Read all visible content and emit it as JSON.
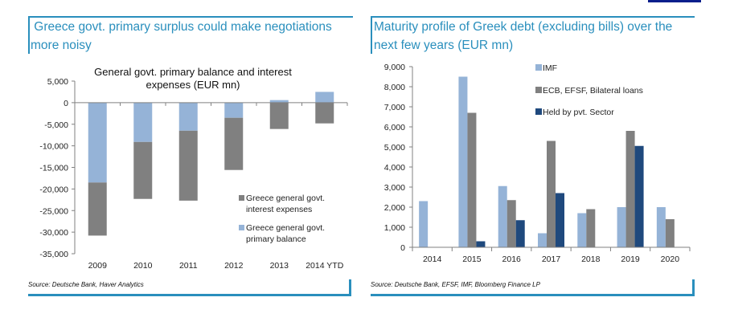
{
  "colors": {
    "frame": "#2a8fbd",
    "topbar": "#0a1e8c",
    "light_blue": "#95b3d7",
    "gray": "#808080",
    "navy": "#1f497d",
    "axis": "#808080"
  },
  "left_panel": {
    "title": " Greece govt. primary surplus could make negotiations more noisy",
    "title_line1": " Greece govt. primary surplus could make negotiations",
    "title_line2": "more noisy",
    "source": "Source: Deutsche Bank, Haver Analytics"
  },
  "right_panel": {
    "title_line1": "Maturity profile of Greek debt (excluding bills) over the",
    "title_line2": "next few years (EUR mn)",
    "source": "Source: Deutsche Bank, EFSF, IMF, Bloomberg Finance LP"
  },
  "chart_data": [
    {
      "type": "bar",
      "stacked": true,
      "title": "General govt. primary balance and interest expenses (EUR mn)",
      "title_line1": "General govt. primary balance and interest",
      "title_line2": "expenses (EUR mn)",
      "xlabel": "",
      "ylabel": "",
      "ylim": [
        -35000,
        5000
      ],
      "yticks": [
        5000,
        0,
        -5000,
        -10000,
        -15000,
        -20000,
        -25000,
        -30000,
        -35000
      ],
      "ytick_labels": [
        "5,000",
        "0",
        "-5,000",
        "-10,000",
        "-15,000",
        "-20,000",
        "-25,000",
        "-30,000",
        "-35,000"
      ],
      "categories": [
        "2009",
        "2010",
        "2011",
        "2012",
        "2013",
        "2014 YTD"
      ],
      "series": [
        {
          "name": "Greece general govt. primary balance",
          "legend_line1": "Greece general govt.",
          "legend_line2": "primary balance",
          "color": "#95b3d7",
          "values": [
            -18500,
            -9100,
            -6500,
            -3500,
            600,
            2500
          ]
        },
        {
          "name": "Greece general govt. interest expenses",
          "legend_line1": "Greece general govt.",
          "legend_line2": "interest expenses",
          "color": "#808080",
          "values": [
            -12300,
            -13200,
            -16200,
            -12100,
            -6100,
            -4800
          ]
        }
      ],
      "legend_position": "bottom-right",
      "grid": false
    },
    {
      "type": "bar",
      "stacked": false,
      "title": "",
      "xlabel": "",
      "ylabel": "",
      "ylim": [
        0,
        9000
      ],
      "yticks": [
        0,
        1000,
        2000,
        3000,
        4000,
        5000,
        6000,
        7000,
        8000,
        9000
      ],
      "ytick_labels": [
        "0",
        "1,000",
        "2,000",
        "3,000",
        "4,000",
        "5,000",
        "6,000",
        "7,000",
        "8,000",
        "9,000"
      ],
      "categories": [
        "2014",
        "2015",
        "2016",
        "2017",
        "2018",
        "2019",
        "2020"
      ],
      "series": [
        {
          "name": "IMF",
          "color": "#95b3d7",
          "values": [
            2300,
            8500,
            3050,
            700,
            1700,
            2000,
            2000
          ]
        },
        {
          "name": "ECB, EFSF, Bilateral loans",
          "color": "#808080",
          "values": [
            0,
            6700,
            2350,
            5300,
            1900,
            5800,
            1400
          ]
        },
        {
          "name": "Held by pvt. Sector",
          "color": "#1f497d",
          "values": [
            0,
            300,
            1350,
            2700,
            0,
            5050,
            0
          ]
        }
      ],
      "legend_position": "top-center",
      "grid": false
    }
  ]
}
